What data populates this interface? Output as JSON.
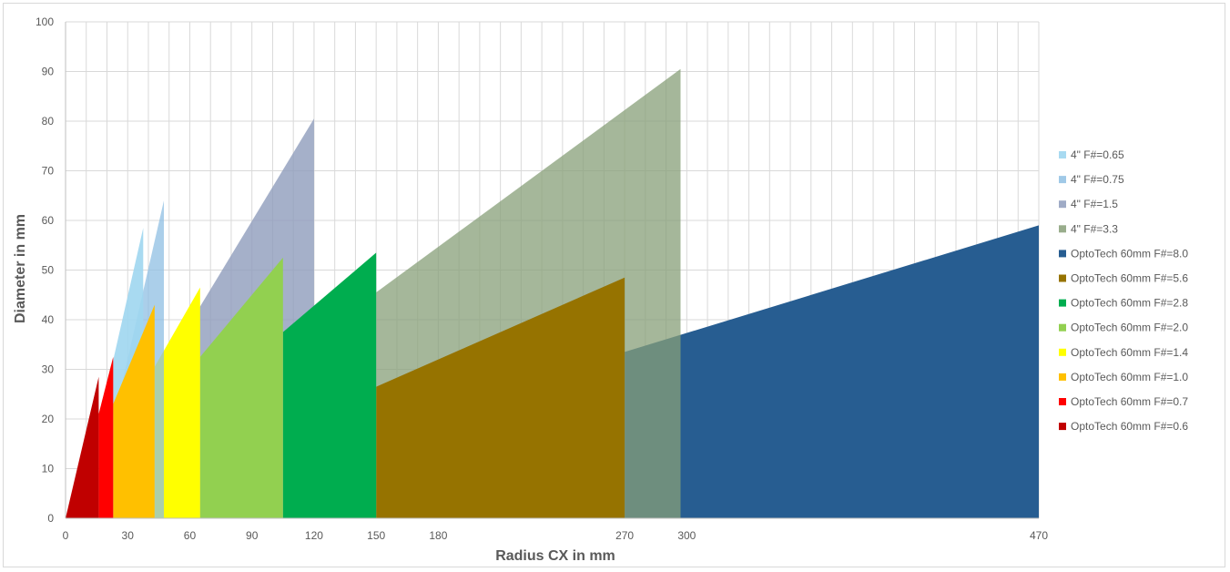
{
  "chart_data": {
    "type": "area",
    "xlabel": "Radius CX in mm",
    "ylabel": "Diameter in mm",
    "ylim": [
      0,
      100
    ],
    "y_ticks": [
      0,
      10,
      20,
      30,
      40,
      50,
      60,
      70,
      80,
      90,
      100
    ],
    "x_ticks": [
      0,
      30,
      60,
      90,
      120,
      150,
      180,
      270,
      300,
      470
    ],
    "xlim": [
      0,
      470
    ],
    "grid": true,
    "legend_position": "right",
    "series": [
      {
        "name": "4\" F#=0.65",
        "color": "#9fd6f0",
        "opacity": 0.9,
        "points": [
          [
            22,
            30
          ],
          [
            37.5,
            58.5
          ],
          [
            37.5,
            0
          ],
          [
            22,
            0
          ]
        ]
      },
      {
        "name": "4\" F#=0.75",
        "color": "#8fbfe3",
        "opacity": 0.75,
        "points": [
          [
            25,
            23
          ],
          [
            47.5,
            64
          ],
          [
            47.5,
            0
          ],
          [
            25,
            0
          ]
        ]
      },
      {
        "name": "4\" F#=1.5",
        "color": "#8e9cbc",
        "opacity": 0.8,
        "points": [
          [
            64,
            42
          ],
          [
            120,
            80.5
          ],
          [
            120,
            0
          ],
          [
            64,
            0
          ]
        ]
      },
      {
        "name": "4\" F#=3.3",
        "color": "#879f78",
        "opacity": 0.75,
        "points": [
          [
            150,
            45.5
          ],
          [
            297,
            90.5
          ],
          [
            297,
            0
          ],
          [
            150,
            0
          ]
        ]
      },
      {
        "name": "OptoTech 60mm F#=8.0",
        "color": "#275d91",
        "opacity": 1,
        "points": [
          [
            270,
            33.5
          ],
          [
            470,
            59
          ],
          [
            470,
            0
          ],
          [
            270,
            0
          ]
        ]
      },
      {
        "name": "OptoTech 60mm F#=5.6",
        "color": "#967300",
        "opacity": 1,
        "points": [
          [
            150,
            26.5
          ],
          [
            270,
            48.5
          ],
          [
            270,
            0
          ],
          [
            150,
            0
          ]
        ]
      },
      {
        "name": "OptoTech 60mm F#=2.8",
        "color": "#00ad4f",
        "opacity": 1,
        "points": [
          [
            105,
            37.5
          ],
          [
            150,
            53.5
          ],
          [
            150,
            0
          ],
          [
            105,
            0
          ]
        ]
      },
      {
        "name": "OptoTech 60mm F#=2.0",
        "color": "#92d050",
        "opacity": 1,
        "points": [
          [
            65,
            32.5
          ],
          [
            105,
            52.5
          ],
          [
            105,
            0
          ],
          [
            65,
            0
          ]
        ]
      },
      {
        "name": "OptoTech 60mm F#=1.4",
        "color": "#ffff00",
        "opacity": 1,
        "points": [
          [
            43,
            30.5
          ],
          [
            65,
            46.5
          ],
          [
            65,
            0
          ],
          [
            43,
            0
          ]
        ]
      },
      {
        "name": "OptoTech 60mm F#=1.0",
        "color": "#ffc000",
        "opacity": 1,
        "points": [
          [
            23,
            23
          ],
          [
            43,
            43
          ],
          [
            43,
            0
          ],
          [
            23,
            0
          ]
        ]
      },
      {
        "name": "OptoTech 60mm F#=0.7",
        "color": "#ff0000",
        "opacity": 1,
        "points": [
          [
            16,
            21
          ],
          [
            23,
            32.5
          ],
          [
            23,
            0
          ],
          [
            16,
            0
          ]
        ]
      },
      {
        "name": "OptoTech 60mm F#=0.6",
        "color": "#c00000",
        "opacity": 1,
        "points": [
          [
            0,
            0
          ],
          [
            16,
            28.5
          ],
          [
            16,
            0
          ]
        ]
      }
    ],
    "draw_order": [
      "OptoTech 60mm F#=8.0",
      "4\" F#=3.3",
      "4\" F#=1.5",
      "OptoTech 60mm F#=5.6",
      "OptoTech 60mm F#=2.8",
      "OptoTech 60mm F#=2.0",
      "OptoTech 60mm F#=1.4",
      "4\" F#=0.75",
      "4\" F#=0.65",
      "OptoTech 60mm F#=1.0",
      "OptoTech 60mm F#=0.7",
      "OptoTech 60mm F#=0.6"
    ],
    "colors": {
      "grid": "#d9d9d9",
      "axis": "#bfbfbf",
      "text": "#595959"
    }
  }
}
